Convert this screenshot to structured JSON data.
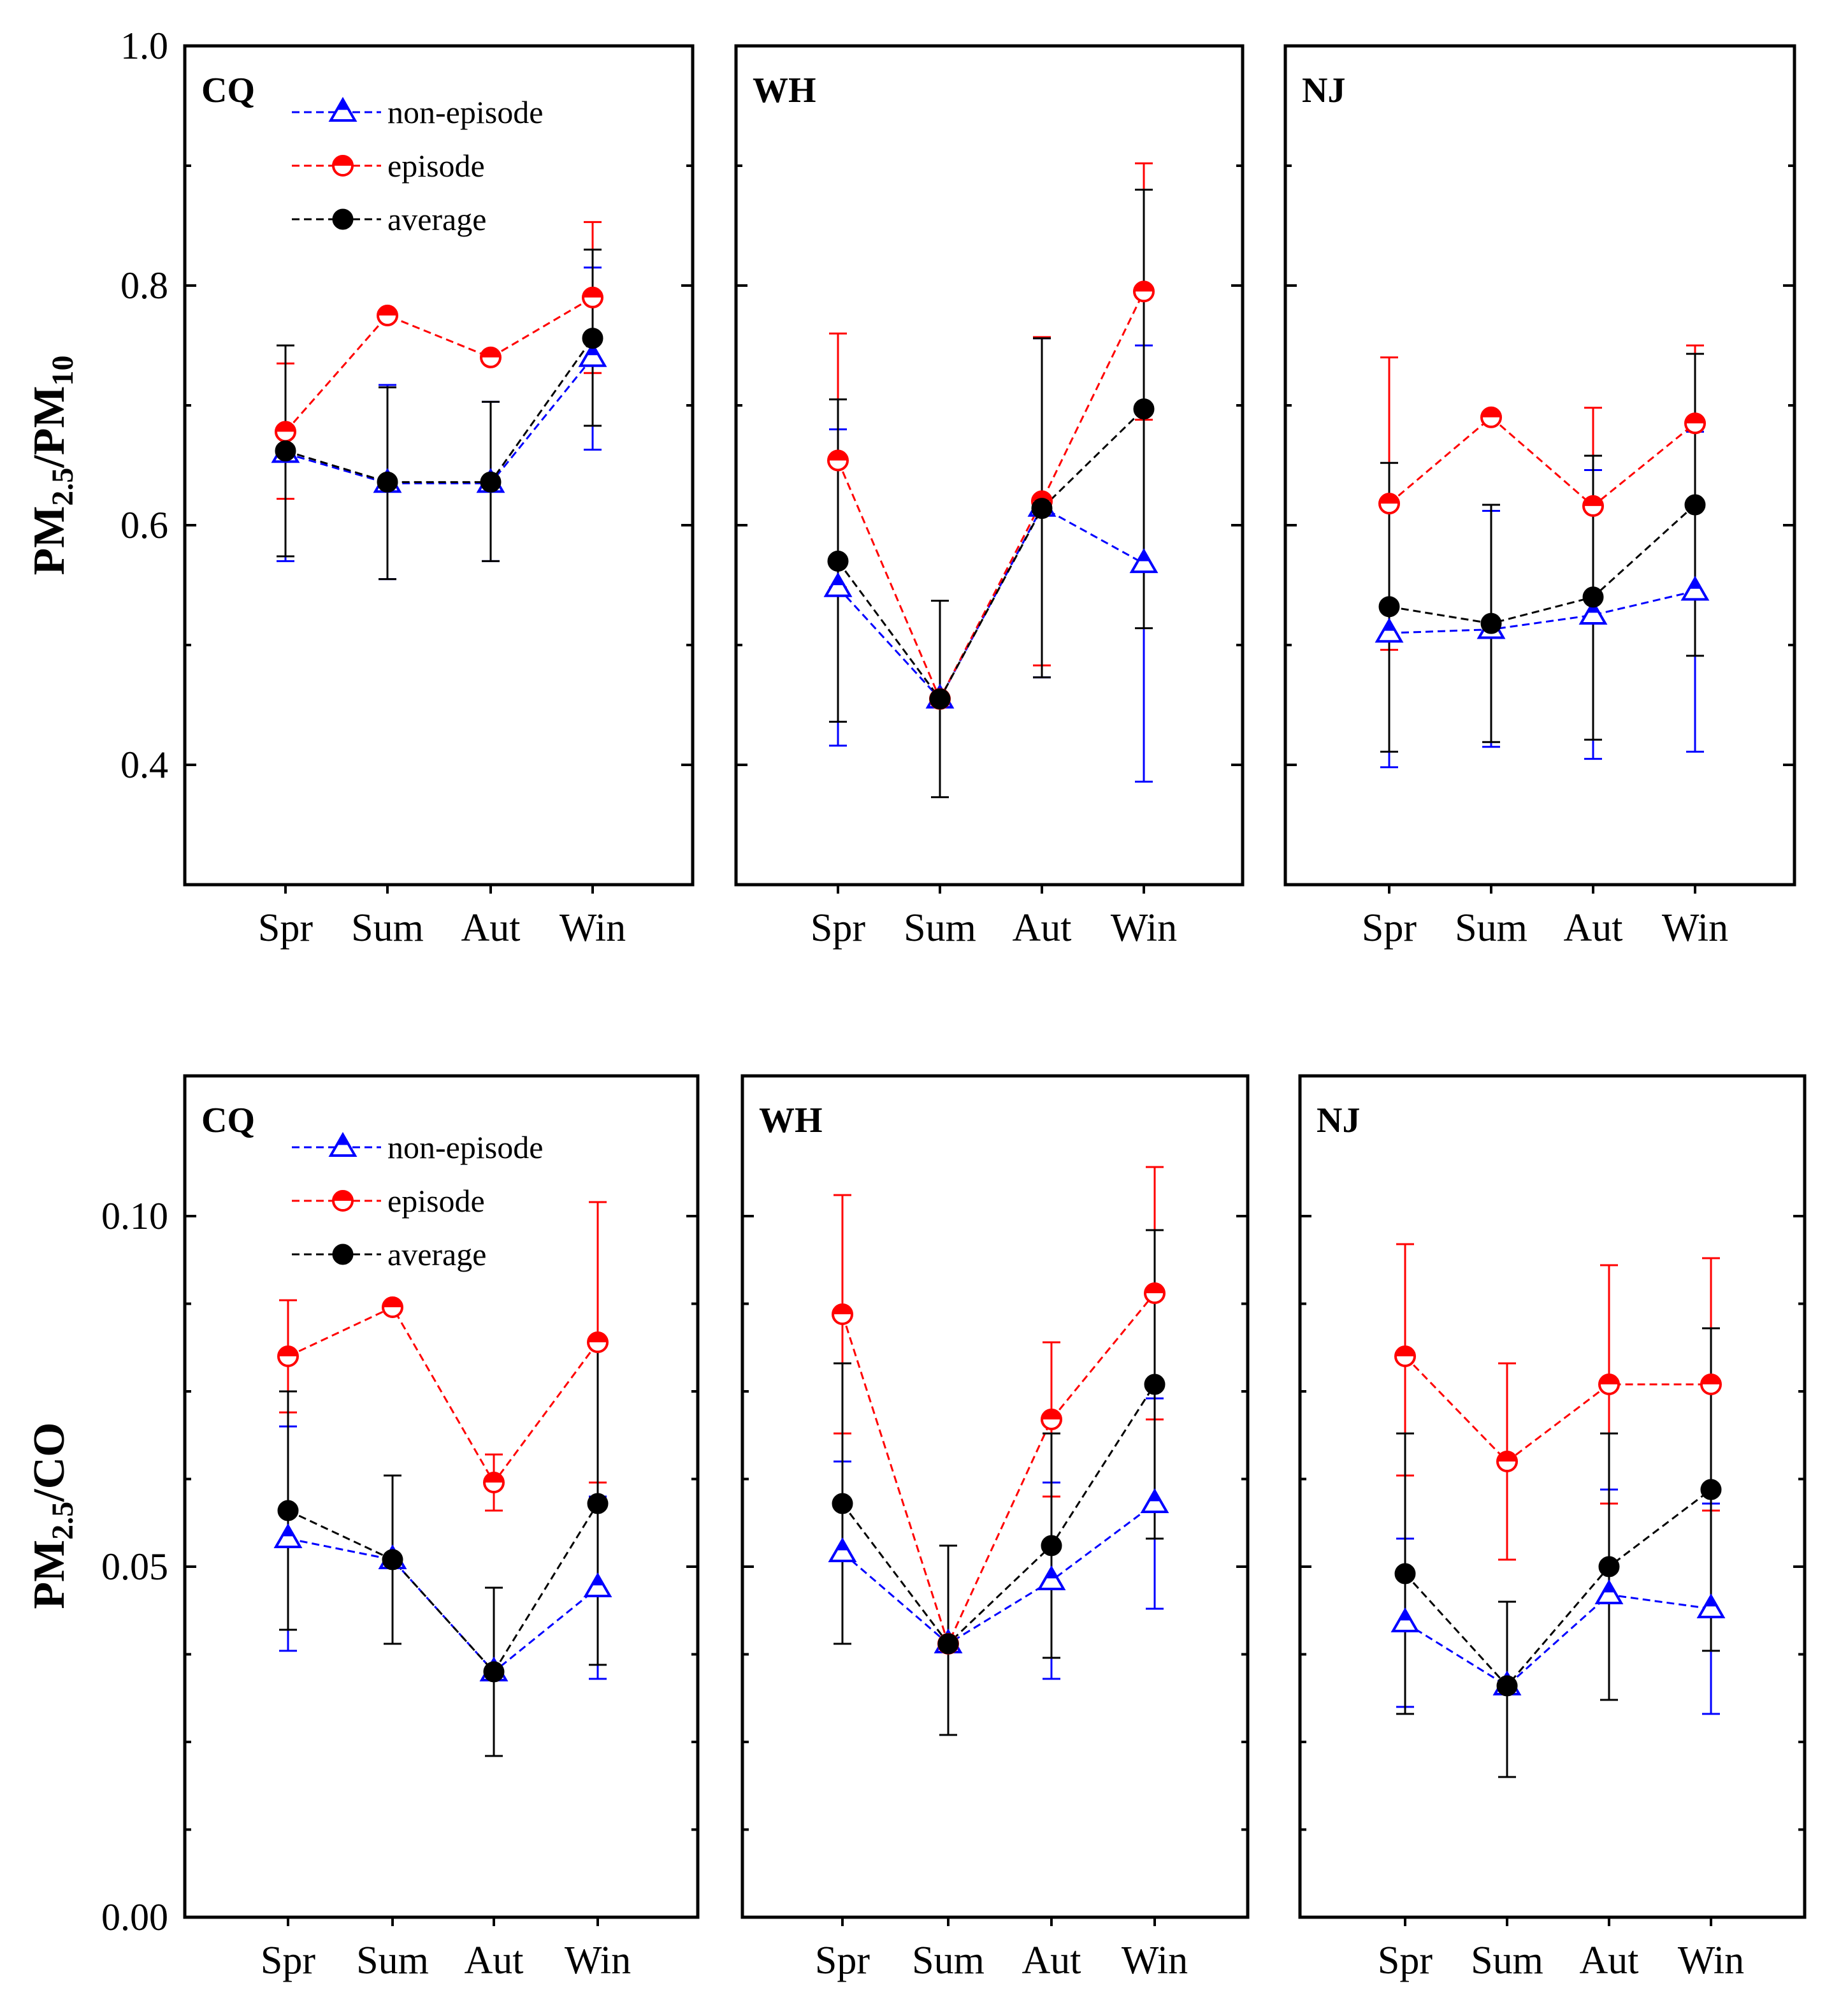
{
  "colors": {
    "non_episode": "#0000ff",
    "episode": "#ff0000",
    "average": "#000000",
    "axis": "#000000"
  },
  "chart_data": [
    {
      "type": "line",
      "row": "top",
      "ylabel": {
        "base": "PM",
        "sub1": "2.5",
        "mid": "/PM",
        "sub2": "10",
        "suffix": ""
      },
      "ylim": [
        0.3,
        1.0
      ],
      "yticks": [
        0.4,
        0.6,
        0.8,
        1.0
      ],
      "ytick_labels": [
        "0.4",
        "0.6",
        "0.8",
        "1.0"
      ],
      "yminor": [
        0.5,
        0.7,
        0.9
      ],
      "categories": [
        "Spr",
        "Sum",
        "Aut",
        "Win"
      ],
      "legend": [
        {
          "key": "non_episode",
          "label": "non-episode"
        },
        {
          "key": "episode",
          "label": "episode"
        },
        {
          "key": "average",
          "label": "average"
        }
      ],
      "panels": [
        {
          "site": "CQ",
          "series": [
            {
              "key": "non_episode",
              "name": "non-episode",
              "values": [
                0.66,
                0.635,
                0.635,
                0.74
              ],
              "err_low": [
                0.57,
                0.555,
                0.57,
                0.663
              ],
              "err_high": [
                0.75,
                0.717,
                0.703,
                0.815
              ]
            },
            {
              "key": "episode",
              "name": "episode",
              "values": [
                0.678,
                0.775,
                0.74,
                0.79
              ],
              "err_low": [
                0.622,
                0.775,
                0.737,
                0.727
              ],
              "err_high": [
                0.735,
                0.775,
                0.742,
                0.853
              ]
            },
            {
              "key": "average",
              "name": "average",
              "values": [
                0.662,
                0.636,
                0.636,
                0.756
              ],
              "err_low": [
                0.574,
                0.555,
                0.57,
                0.683
              ],
              "err_high": [
                0.75,
                0.715,
                0.703,
                0.83
              ]
            }
          ]
        },
        {
          "site": "WH",
          "series": [
            {
              "key": "non_episode",
              "name": "non-episode",
              "values": [
                0.548,
                0.455,
                0.615,
                0.568
              ],
              "err_low": [
                0.416,
                0.455,
                0.473,
                0.386
              ],
              "err_high": [
                0.68,
                0.455,
                0.756,
                0.75
              ]
            },
            {
              "key": "episode",
              "name": "episode",
              "values": [
                0.654,
                0.455,
                0.62,
                0.795
              ],
              "err_low": [
                0.548,
                0.455,
                0.483,
                0.688
              ],
              "err_high": [
                0.76,
                0.455,
                0.757,
                0.902
              ]
            },
            {
              "key": "average",
              "name": "average",
              "values": [
                0.57,
                0.455,
                0.614,
                0.697
              ],
              "err_low": [
                0.436,
                0.373,
                0.473,
                0.514
              ],
              "err_high": [
                0.705,
                0.537,
                0.756,
                0.88
              ]
            }
          ]
        },
        {
          "site": "NJ",
          "series": [
            {
              "key": "non_episode",
              "name": "non-episode",
              "values": [
                0.51,
                0.513,
                0.525,
                0.545
              ],
              "err_low": [
                0.398,
                0.415,
                0.405,
                0.411
              ],
              "err_high": [
                0.622,
                0.612,
                0.646,
                0.678
              ]
            },
            {
              "key": "episode",
              "name": "episode",
              "values": [
                0.618,
                0.69,
                0.616,
                0.685
              ],
              "err_low": [
                0.496,
                0.69,
                0.616,
                0.62
              ],
              "err_high": [
                0.74,
                0.69,
                0.698,
                0.75
              ]
            },
            {
              "key": "average",
              "name": "average",
              "values": [
                0.532,
                0.518,
                0.54,
                0.617
              ],
              "err_low": [
                0.411,
                0.419,
                0.421,
                0.491
              ],
              "err_high": [
                0.652,
                0.617,
                0.658,
                0.743
              ]
            }
          ]
        }
      ]
    },
    {
      "type": "line",
      "row": "bottom",
      "ylabel": {
        "base": "PM",
        "sub1": "2.5",
        "mid": "/CO",
        "sub2": "",
        "suffix": ""
      },
      "ylim": [
        0.0,
        0.12
      ],
      "yticks": [
        0.0,
        0.05,
        0.1
      ],
      "ytick_labels": [
        "0.00",
        "0.05",
        "0.10"
      ],
      "yminor": [
        0.0125,
        0.025,
        0.0375,
        0.0625,
        0.075,
        0.0875
      ],
      "categories": [
        "Spr",
        "Sum",
        "Aut",
        "Win"
      ],
      "legend": [
        {
          "key": "non_episode",
          "label": "non-episode"
        },
        {
          "key": "episode",
          "label": "episode"
        },
        {
          "key": "average",
          "label": "average"
        }
      ],
      "panels": [
        {
          "site": "CQ",
          "series": [
            {
              "key": "non_episode",
              "name": "non-episode",
              "values": [
                0.054,
                0.051,
                0.035,
                0.047
              ],
              "err_low": [
                0.038,
                0.051,
                0.023,
                0.034
              ],
              "err_high": [
                0.07,
                0.051,
                0.047,
                0.06
              ]
            },
            {
              "key": "episode",
              "name": "episode",
              "values": [
                0.08,
                0.087,
                0.062,
                0.082
              ],
              "err_low": [
                0.072,
                0.087,
                0.058,
                0.062
              ],
              "err_high": [
                0.088,
                0.087,
                0.066,
                0.102
              ]
            },
            {
              "key": "average",
              "name": "average",
              "values": [
                0.058,
                0.051,
                0.035,
                0.059
              ],
              "err_low": [
                0.041,
                0.039,
                0.023,
                0.036
              ],
              "err_high": [
                0.075,
                0.063,
                0.047,
                0.082
              ]
            }
          ]
        },
        {
          "site": "WH",
          "series": [
            {
              "key": "non_episode",
              "name": "non-episode",
              "values": [
                0.052,
                0.039,
                0.048,
                0.059
              ],
              "err_low": [
                0.039,
                0.039,
                0.034,
                0.044
              ],
              "err_high": [
                0.065,
                0.039,
                0.062,
                0.074
              ]
            },
            {
              "key": "episode",
              "name": "episode",
              "values": [
                0.086,
                0.039,
                0.071,
                0.089
              ],
              "err_low": [
                0.069,
                0.039,
                0.06,
                0.071
              ],
              "err_high": [
                0.103,
                0.039,
                0.082,
                0.107
              ]
            },
            {
              "key": "average",
              "name": "average",
              "values": [
                0.059,
                0.039,
                0.053,
                0.076
              ],
              "err_low": [
                0.039,
                0.026,
                0.037,
                0.054
              ],
              "err_high": [
                0.079,
                0.053,
                0.069,
                0.098
              ]
            }
          ]
        },
        {
          "site": "NJ",
          "series": [
            {
              "key": "non_episode",
              "name": "non-episode",
              "values": [
                0.042,
                0.033,
                0.046,
                0.044
              ],
              "err_low": [
                0.03,
                0.033,
                0.031,
                0.029
              ],
              "err_high": [
                0.054,
                0.033,
                0.061,
                0.059
              ]
            },
            {
              "key": "episode",
              "name": "episode",
              "values": [
                0.08,
                0.065,
                0.076,
                0.076
              ],
              "err_low": [
                0.063,
                0.051,
                0.059,
                0.058
              ],
              "err_high": [
                0.096,
                0.079,
                0.093,
                0.094
              ]
            },
            {
              "key": "average",
              "name": "average",
              "values": [
                0.049,
                0.033,
                0.05,
                0.061
              ],
              "err_low": [
                0.029,
                0.02,
                0.031,
                0.038
              ],
              "err_high": [
                0.069,
                0.045,
                0.069,
                0.084
              ]
            }
          ]
        }
      ]
    }
  ]
}
